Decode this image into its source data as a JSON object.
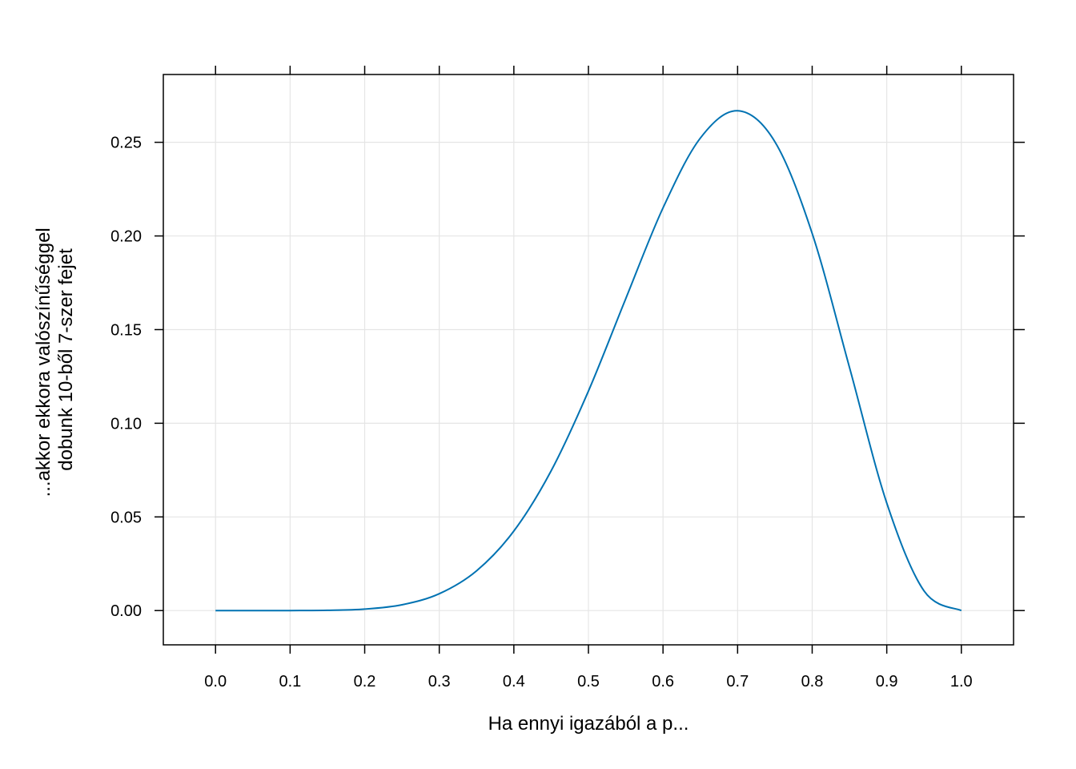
{
  "chart_data": {
    "type": "line",
    "xlabel": "Ha ennyi igazából a p...",
    "ylabel_lines": [
      "...akkor ekkora valószínűséggel",
      "dobunk 10-ből 7-szer fejet"
    ],
    "xlim": [
      -0.07,
      1.07
    ],
    "ylim": [
      -0.0183,
      0.2862
    ],
    "x_ticks": [
      0.0,
      0.1,
      0.2,
      0.3,
      0.4,
      0.5,
      0.6,
      0.7,
      0.8,
      0.9,
      1.0
    ],
    "x_tick_labels": [
      "0.0",
      "0.1",
      "0.2",
      "0.3",
      "0.4",
      "0.5",
      "0.6",
      "0.7",
      "0.8",
      "0.9",
      "1.0"
    ],
    "y_ticks": [
      0.0,
      0.05,
      0.1,
      0.15,
      0.2,
      0.25
    ],
    "y_tick_labels": [
      "0.00",
      "0.05",
      "0.10",
      "0.15",
      "0.20",
      "0.25"
    ],
    "grid": true,
    "colors": {
      "line": "#0072B2",
      "grid": "#e5e5e5",
      "frame": "#000000"
    },
    "series": [
      {
        "x": [
          0.0,
          0.05,
          0.1,
          0.15,
          0.2,
          0.25,
          0.3,
          0.35,
          0.4,
          0.45,
          0.5,
          0.55,
          0.6,
          0.65,
          0.7,
          0.75,
          0.8,
          0.85,
          0.9,
          0.95,
          1.0
        ],
        "y": [
          0.0,
          1e-06,
          9e-06,
          0.000125,
          0.000786,
          0.00309,
          0.009002,
          0.021221,
          0.042467,
          0.074603,
          0.117188,
          0.166478,
          0.214991,
          0.25222,
          0.266828,
          0.250282,
          0.201327,
          0.129834,
          0.057396,
          0.010475,
          0.0
        ]
      }
    ]
  }
}
